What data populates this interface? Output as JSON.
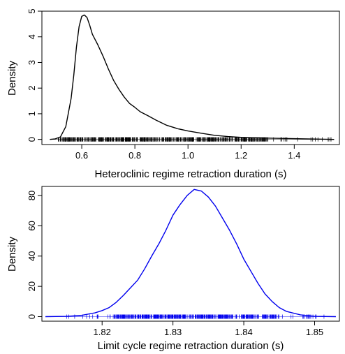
{
  "chart_data": [
    {
      "type": "line",
      "panel": "top",
      "title": "",
      "xlabel": "Heteroclinic regime retraction duration (s)",
      "ylabel": "Density",
      "xlim": [
        0.45,
        1.57
      ],
      "ylim": [
        -0.2,
        5.0
      ],
      "xticks": [
        0.6,
        0.8,
        1.0,
        1.2,
        1.4
      ],
      "xtick_labels": [
        "0.6",
        "0.8",
        "1.0",
        "1.2",
        "1.4"
      ],
      "yticks": [
        0,
        1,
        2,
        3,
        4,
        5
      ],
      "ytick_labels": [
        "0",
        "1",
        "2",
        "3",
        "4",
        "5"
      ],
      "grid": false,
      "legend": "none",
      "color": "#000000",
      "rug": {
        "from": 0.51,
        "to": 1.55,
        "dense_until": 1.3
      },
      "series": [
        {
          "x": [
            0.48,
            0.5,
            0.52,
            0.54,
            0.56,
            0.57,
            0.58,
            0.59,
            0.6,
            0.61,
            0.62,
            0.63,
            0.64,
            0.65,
            0.66,
            0.68,
            0.7,
            0.72,
            0.74,
            0.76,
            0.78,
            0.8,
            0.82,
            0.85,
            0.88,
            0.92,
            0.96,
            1.0,
            1.05,
            1.1,
            1.15,
            1.2,
            1.3,
            1.4,
            1.5,
            1.55
          ],
          "y": [
            0.0,
            0.02,
            0.1,
            0.5,
            1.6,
            2.5,
            3.6,
            4.4,
            4.8,
            4.85,
            4.75,
            4.45,
            4.1,
            3.9,
            3.7,
            3.25,
            2.75,
            2.3,
            1.95,
            1.65,
            1.4,
            1.25,
            1.08,
            0.92,
            0.75,
            0.55,
            0.42,
            0.33,
            0.24,
            0.16,
            0.11,
            0.08,
            0.05,
            0.03,
            0.01,
            0.0
          ]
        }
      ]
    },
    {
      "type": "line",
      "panel": "bottom",
      "title": "",
      "xlabel": "Limit cycle regime retraction duration (s)",
      "ylabel": "Density",
      "xlim": [
        1.8115,
        1.8535
      ],
      "ylim": [
        -3,
        86
      ],
      "xticks": [
        1.82,
        1.83,
        1.84,
        1.85
      ],
      "xtick_labels": [
        "1.82",
        "1.83",
        "1.84",
        "1.85"
      ],
      "yticks": [
        0,
        20,
        40,
        60,
        80
      ],
      "ytick_labels": [
        "0",
        "20",
        "40",
        "60",
        "80"
      ],
      "grid": false,
      "legend": "none",
      "color": "#0000ee",
      "rug": {
        "from": 1.8145,
        "to": 1.8515,
        "dense_from": 1.8215,
        "dense_to": 1.845
      },
      "series": [
        {
          "x": [
            1.812,
            1.815,
            1.817,
            1.819,
            1.82,
            1.821,
            1.822,
            1.823,
            1.824,
            1.825,
            1.826,
            1.827,
            1.828,
            1.829,
            1.83,
            1.831,
            1.832,
            1.833,
            1.834,
            1.835,
            1.836,
            1.837,
            1.838,
            1.839,
            1.84,
            1.841,
            1.842,
            1.843,
            1.844,
            1.845,
            1.846,
            1.848,
            1.85,
            1.853
          ],
          "y": [
            0.0,
            0.2,
            0.8,
            2.5,
            4.0,
            6.0,
            9.5,
            14.0,
            19.0,
            24.0,
            31.5,
            40.0,
            48.0,
            57.0,
            67.0,
            74.0,
            80.0,
            84.0,
            83.0,
            79.0,
            73.0,
            65.0,
            57.0,
            48.0,
            38.0,
            30.0,
            22.0,
            15.0,
            10.0,
            6.0,
            3.5,
            1.2,
            0.2,
            0.0
          ]
        }
      ]
    }
  ]
}
